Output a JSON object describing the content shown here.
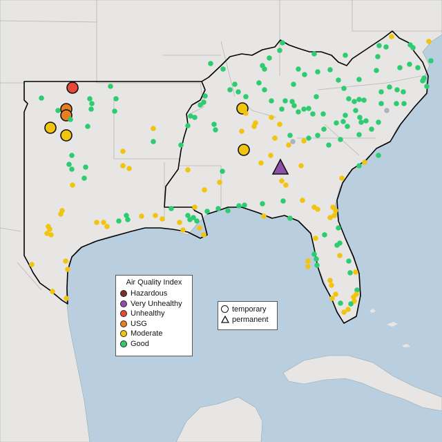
{
  "legend_aqi": {
    "title": "Air Quality Index",
    "items": [
      {
        "label": "Hazardous",
        "color": "#7e2f24"
      },
      {
        "label": "Very Unhealthy",
        "color": "#8f4fa9"
      },
      {
        "label": "Unhealthy",
        "color": "#e8483a"
      },
      {
        "label": "USG",
        "color": "#e67e22"
      },
      {
        "label": "Moderate",
        "color": "#f1c40f"
      },
      {
        "label": "Good",
        "color": "#2ecc71"
      }
    ]
  },
  "legend_type": {
    "items": [
      {
        "label": "temporary",
        "shape": "circle"
      },
      {
        "label": "permanent",
        "shape": "triangle"
      }
    ]
  },
  "colors": {
    "water": "#b9cfe0",
    "land": "#e8e6e4",
    "region_outline": "#000000",
    "border": "#b0b0b0"
  },
  "monitors": {
    "large": [
      {
        "aqi": "Unhealthy",
        "type": "temporary"
      },
      {
        "aqi": "USG",
        "type": "temporary"
      },
      {
        "aqi": "USG",
        "type": "temporary"
      },
      {
        "aqi": "Moderate",
        "type": "temporary"
      },
      {
        "aqi": "Moderate",
        "type": "temporary"
      },
      {
        "aqi": "Moderate",
        "type": "temporary"
      },
      {
        "aqi": "Moderate",
        "type": "temporary"
      },
      {
        "aqi": "Very Unhealthy",
        "type": "permanent"
      }
    ]
  }
}
